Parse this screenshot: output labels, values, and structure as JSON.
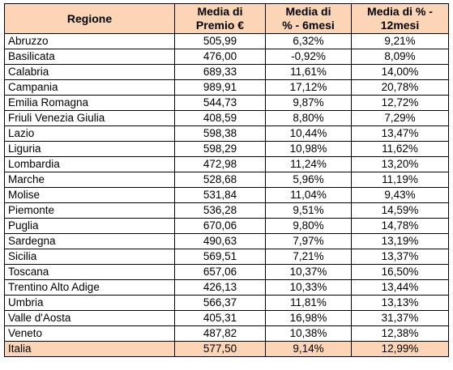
{
  "header": {
    "regione": "Regione",
    "premio_line1": "Media di",
    "premio_line2": "Premio €",
    "sei_line1": "Media di",
    "sei_line2": "% - 6mesi",
    "dodici_line1": "Media di % -",
    "dodici_line2": "12mesi"
  },
  "rows": [
    {
      "regione": "Abruzzo",
      "premio": "505,99",
      "sei": "6,32%",
      "dodici": "9,21%"
    },
    {
      "regione": "Basilicata",
      "premio": "476,00",
      "sei": "-0,92%",
      "dodici": "8,09%"
    },
    {
      "regione": "Calabria",
      "premio": "689,33",
      "sei": "11,61%",
      "dodici": "14,00%"
    },
    {
      "regione": "Campania",
      "premio": "989,91",
      "sei": "17,12%",
      "dodici": "20,78%"
    },
    {
      "regione": "Emilia Romagna",
      "premio": "544,73",
      "sei": "9,87%",
      "dodici": "12,72%"
    },
    {
      "regione": "Friuli Venezia Giulia",
      "premio": "408,59",
      "sei": "8,80%",
      "dodici": "7,29%"
    },
    {
      "regione": "Lazio",
      "premio": "598,38",
      "sei": "10,44%",
      "dodici": "13,47%"
    },
    {
      "regione": "Liguria",
      "premio": "598,29",
      "sei": "10,98%",
      "dodici": "11,62%"
    },
    {
      "regione": "Lombardia",
      "premio": "472,98",
      "sei": "11,24%",
      "dodici": "13,20%"
    },
    {
      "regione": "Marche",
      "premio": "528,68",
      "sei": "5,96%",
      "dodici": "11,19%"
    },
    {
      "regione": "Molise",
      "premio": "531,84",
      "sei": "11,04%",
      "dodici": "9,43%"
    },
    {
      "regione": "Piemonte",
      "premio": "536,28",
      "sei": "9,51%",
      "dodici": "14,59%"
    },
    {
      "regione": "Puglia",
      "premio": "670,06",
      "sei": "9,80%",
      "dodici": "14,78%"
    },
    {
      "regione": "Sardegna",
      "premio": "490,63",
      "sei": "7,97%",
      "dodici": "13,19%"
    },
    {
      "regione": "Sicilia",
      "premio": "569,51",
      "sei": "7,21%",
      "dodici": "13,37%"
    },
    {
      "regione": "Toscana",
      "premio": "657,06",
      "sei": "10,37%",
      "dodici": "16,50%"
    },
    {
      "regione": "Trentino Alto Adige",
      "premio": "426,13",
      "sei": "10,33%",
      "dodici": "13,44%"
    },
    {
      "regione": "Umbria",
      "premio": "566,37",
      "sei": "11,81%",
      "dodici": "13,13%"
    },
    {
      "regione": "Valle d'Aosta",
      "premio": "405,31",
      "sei": "16,98%",
      "dodici": "31,37%"
    },
    {
      "regione": "Veneto",
      "premio": "487,82",
      "sei": "10,38%",
      "dodici": "12,38%"
    }
  ],
  "total": {
    "regione": "Italia",
    "premio": "577,50",
    "sei": "9,14%",
    "dodici": "12,99%"
  },
  "colors": {
    "header_bg": "#fbd5b5",
    "total_bg": "#fbd5b5",
    "border": "#000000"
  }
}
